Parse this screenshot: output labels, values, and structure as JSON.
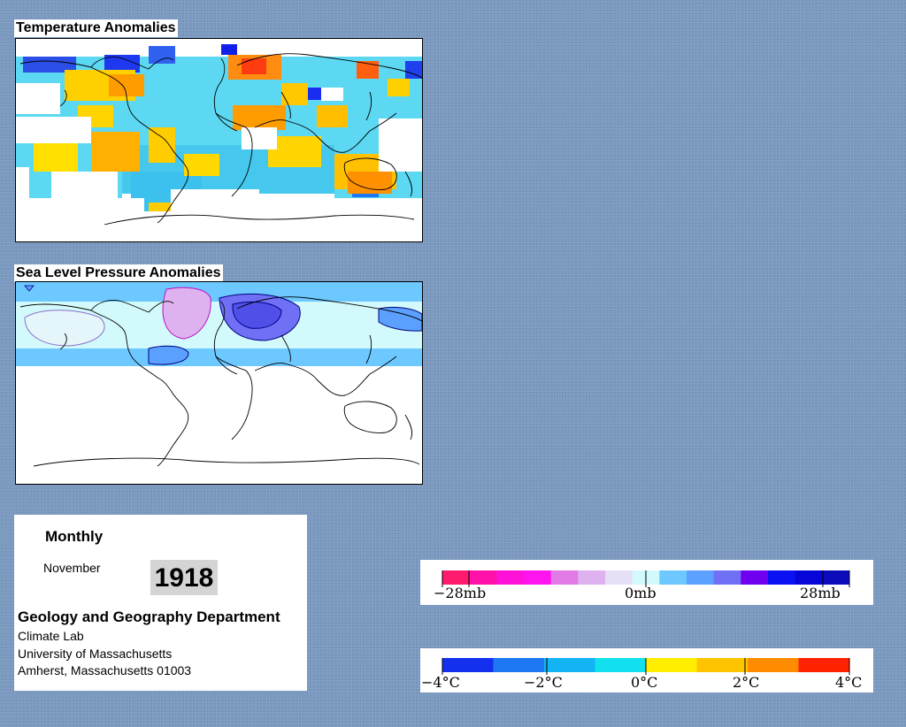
{
  "maps": {
    "temperature": {
      "title": "Temperature Anomalies"
    },
    "pressure": {
      "title": "Sea Level Pressure Anomalies"
    }
  },
  "info": {
    "period": "Monthly",
    "month": "November",
    "year": "1918",
    "department": "Geology and Geography Department",
    "lab": "Climate Lab",
    "university": "University of Massachusetts",
    "address": "Amherst, Massachusetts 01003"
  },
  "legends": {
    "pressure": {
      "labels": [
        "−28mb",
        "0mb",
        "28mb"
      ],
      "colors": [
        "#ff1a6e",
        "#ff10a8",
        "#ff12d8",
        "#ff14f0",
        "#e27ae6",
        "#ddb2ee",
        "#e5e0f6",
        "#d2fafc",
        "#6cc8ff",
        "#5ca0ff",
        "#7070f6",
        "#7000f0",
        "#0a12f4",
        "#0606d8",
        "#0c0cba"
      ]
    },
    "temperature": {
      "labels": [
        "−4°C",
        "−2°C",
        "0°C",
        "2°C",
        "4°C"
      ],
      "colors": [
        "#1230ee",
        "#1e78f4",
        "#12b4f4",
        "#12e0ee",
        "#ffee00",
        "#ffc400",
        "#ff8c00",
        "#ff2200"
      ]
    }
  }
}
